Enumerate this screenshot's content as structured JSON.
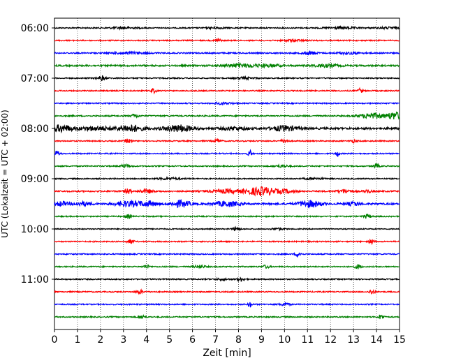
{
  "chart_data": {
    "type": "line",
    "subtype": "seismogram-helicorder",
    "xlabel": "Zeit  [min]",
    "ylabel": "UTC (Lokalzeit = UTC + 02:00)",
    "xlim": [
      0,
      15
    ],
    "x_ticks": [
      0,
      1,
      2,
      3,
      4,
      5,
      6,
      7,
      8,
      9,
      10,
      11,
      12,
      13,
      14,
      15
    ],
    "x_tick_labels": [
      "0",
      "1",
      "2",
      "3",
      "4",
      "5",
      "6",
      "7",
      "8",
      "9",
      "10",
      "11",
      "12",
      "13",
      "14",
      "15"
    ],
    "y_tick_labels": [
      "06:00",
      "07:00",
      "08:00",
      "09:00",
      "10:00",
      "11:00"
    ],
    "grid": "vertical dotted lines at each minute",
    "trace_interval_min": 15,
    "trace_colors": [
      "#000000",
      "#ff0000",
      "#0000ff",
      "#008000"
    ],
    "traces": [
      {
        "start": "06:00",
        "color": "#000000",
        "noise": 0.8,
        "events": [
          [
            3.0,
            0.4,
            1.3
          ],
          [
            7.0,
            0.3,
            1.0
          ],
          [
            12.5,
            0.5,
            1.2
          ],
          [
            14.5,
            0.4,
            1.0
          ]
        ]
      },
      {
        "start": "06:15",
        "color": "#ff0000",
        "noise": 0.8,
        "events": [
          [
            7.1,
            0.08,
            3.5
          ],
          [
            10.4,
            0.3,
            1.2
          ]
        ]
      },
      {
        "start": "06:30",
        "color": "#0000ff",
        "noise": 0.9,
        "events": [
          [
            3.2,
            0.5,
            1.5
          ],
          [
            11.1,
            0.2,
            2.5
          ],
          [
            12.8,
            0.4,
            1.3
          ]
        ]
      },
      {
        "start": "06:45",
        "color": "#008000",
        "noise": 1.1,
        "events": [
          [
            8.1,
            0.5,
            2.2
          ],
          [
            9.3,
            0.4,
            1.6
          ],
          [
            11.8,
            0.4,
            1.8
          ]
        ]
      },
      {
        "start": "07:00",
        "color": "#000000",
        "noise": 0.8,
        "events": [
          [
            2.05,
            0.12,
            3.0
          ],
          [
            8.3,
            0.3,
            1.2
          ]
        ]
      },
      {
        "start": "07:15",
        "color": "#ff0000",
        "noise": 0.8,
        "events": [
          [
            4.3,
            0.08,
            3.2
          ],
          [
            13.3,
            0.08,
            3.0
          ]
        ]
      },
      {
        "start": "07:30",
        "color": "#0000ff",
        "noise": 0.8,
        "events": [
          [
            7.3,
            0.3,
            1.2
          ]
        ]
      },
      {
        "start": "07:45",
        "color": "#008000",
        "noise": 0.9,
        "events": [
          [
            3.5,
            0.1,
            2.5
          ],
          [
            13.8,
            0.4,
            3.5
          ],
          [
            14.8,
            0.25,
            5.0
          ]
        ]
      },
      {
        "start": "08:00",
        "color": "#000000",
        "noise": 1.4,
        "events": [
          [
            0.3,
            0.35,
            4.5
          ],
          [
            1.8,
            0.5,
            2.5
          ],
          [
            3.3,
            0.4,
            4.5
          ],
          [
            5.4,
            0.45,
            4.5
          ],
          [
            7.8,
            0.4,
            2.0
          ],
          [
            10.0,
            0.4,
            3.5
          ]
        ]
      },
      {
        "start": "08:15",
        "color": "#ff0000",
        "noise": 0.8,
        "events": [
          [
            3.2,
            0.1,
            2.5
          ],
          [
            7.1,
            0.1,
            2.5
          ],
          [
            10.0,
            0.1,
            2.5
          ],
          [
            13.0,
            0.1,
            2.0
          ]
        ]
      },
      {
        "start": "08:30",
        "color": "#0000ff",
        "noise": 0.8,
        "events": [
          [
            0.1,
            0.1,
            3.5
          ],
          [
            8.5,
            0.06,
            4.5
          ],
          [
            12.3,
            0.06,
            4.2
          ]
        ]
      },
      {
        "start": "08:45",
        "color": "#008000",
        "noise": 0.8,
        "events": [
          [
            3.1,
            0.15,
            2.5
          ],
          [
            9.9,
            0.2,
            1.5
          ],
          [
            14.0,
            0.08,
            3.5
          ]
        ]
      },
      {
        "start": "09:00",
        "color": "#000000",
        "noise": 0.8,
        "events": [
          [
            5.0,
            0.4,
            1.2
          ],
          [
            11.3,
            0.3,
            1.2
          ]
        ]
      },
      {
        "start": "09:15",
        "color": "#ff0000",
        "noise": 1.0,
        "events": [
          [
            3.2,
            0.1,
            3.5
          ],
          [
            4.0,
            0.2,
            2.8
          ],
          [
            7.5,
            0.5,
            2.5
          ],
          [
            8.8,
            0.4,
            4.0
          ],
          [
            9.2,
            0.3,
            3.0
          ],
          [
            10.0,
            0.3,
            2.5
          ],
          [
            12.6,
            0.2,
            2.5
          ],
          [
            13.6,
            0.1,
            2.5
          ]
        ]
      },
      {
        "start": "09:30",
        "color": "#0000ff",
        "noise": 1.2,
        "events": [
          [
            0.3,
            0.2,
            3.0
          ],
          [
            1.2,
            0.3,
            2.5
          ],
          [
            3.2,
            0.4,
            3.5
          ],
          [
            4.1,
            0.3,
            3.0
          ],
          [
            5.5,
            0.3,
            4.5
          ],
          [
            7.5,
            0.4,
            3.5
          ],
          [
            11.1,
            0.35,
            4.5
          ],
          [
            13.0,
            0.2,
            2.5
          ]
        ]
      },
      {
        "start": "09:45",
        "color": "#008000",
        "noise": 0.8,
        "events": [
          [
            3.2,
            0.1,
            2.5
          ],
          [
            13.6,
            0.1,
            3.0
          ]
        ]
      },
      {
        "start": "10:00",
        "color": "#000000",
        "noise": 0.7,
        "events": [
          [
            7.9,
            0.1,
            2.8
          ],
          [
            9.7,
            0.2,
            1.3
          ]
        ]
      },
      {
        "start": "10:15",
        "color": "#ff0000",
        "noise": 0.8,
        "events": [
          [
            3.3,
            0.1,
            2.8
          ],
          [
            13.8,
            0.08,
            3.0
          ]
        ]
      },
      {
        "start": "10:30",
        "color": "#0000ff",
        "noise": 0.8,
        "events": [
          [
            10.6,
            0.08,
            3.8
          ]
        ]
      },
      {
        "start": "10:45",
        "color": "#008000",
        "noise": 0.8,
        "events": [
          [
            4.0,
            0.1,
            2.5
          ],
          [
            6.3,
            0.2,
            1.5
          ],
          [
            9.2,
            0.1,
            2.2
          ],
          [
            13.2,
            0.1,
            3.0
          ]
        ]
      },
      {
        "start": "11:00",
        "color": "#000000",
        "noise": 0.8,
        "events": [
          [
            8.1,
            0.1,
            2.5
          ],
          [
            7.3,
            0.2,
            1.2
          ]
        ]
      },
      {
        "start": "11:15",
        "color": "#ff0000",
        "noise": 0.8,
        "events": [
          [
            3.7,
            0.1,
            2.8
          ],
          [
            13.8,
            0.08,
            3.2
          ]
        ]
      },
      {
        "start": "11:30",
        "color": "#0000ff",
        "noise": 0.8,
        "events": [
          [
            8.5,
            0.06,
            4.0
          ],
          [
            10.0,
            0.15,
            1.8
          ]
        ]
      },
      {
        "start": "11:45",
        "color": "#008000",
        "noise": 0.8,
        "events": [
          [
            3.8,
            0.1,
            2.5
          ],
          [
            14.2,
            0.08,
            3.8
          ]
        ]
      }
    ]
  }
}
